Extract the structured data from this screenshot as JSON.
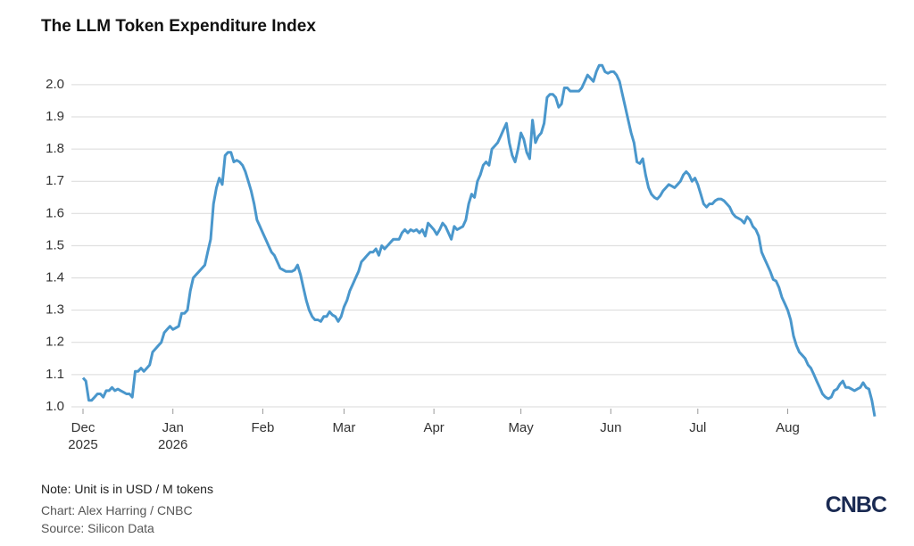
{
  "chart_data": {
    "type": "line",
    "title": "The LLM Token Expenditure Index",
    "note": "Note: Unit is in USD / M tokens",
    "credit": "Chart: Alex Harring / CNBC",
    "source": "Source: Silicon Data",
    "logo": "CNBC",
    "color": "#4a97cc",
    "grid": true,
    "xlim": [
      -4,
      277
    ],
    "ylim": [
      0.95,
      2.08
    ],
    "xticks": [
      {
        "value": 0,
        "label": "Dec 2025"
      },
      {
        "value": 31,
        "label": "Jan 2026"
      },
      {
        "value": 62,
        "label": "Feb"
      },
      {
        "value": 90,
        "label": "Mar"
      },
      {
        "value": 121,
        "label": "Apr"
      },
      {
        "value": 151,
        "label": "May"
      },
      {
        "value": 182,
        "label": "Jun"
      },
      {
        "value": 212,
        "label": "Jul"
      },
      {
        "value": 243,
        "label": "Aug"
      }
    ],
    "yticks": [
      {
        "value": 1,
        "label": "1.0"
      },
      1.1,
      1.2,
      1.3,
      1.4,
      1.5,
      1.6,
      1.7,
      1.8,
      1.9,
      {
        "value": 2,
        "label": "2.0"
      }
    ],
    "x": [
      0,
      1,
      2,
      3,
      4,
      5,
      6,
      7,
      8,
      9,
      10,
      11,
      12,
      13,
      14,
      15,
      16,
      17,
      18,
      19,
      20,
      21,
      22,
      23,
      24,
      25,
      26,
      27,
      28,
      29,
      30,
      31,
      32,
      33,
      34,
      35,
      36,
      37,
      38,
      39,
      40,
      41,
      42,
      43,
      44,
      45,
      46,
      47,
      48,
      49,
      50,
      51,
      52,
      53,
      54,
      55,
      56,
      57,
      58,
      59,
      60,
      61,
      62,
      63,
      64,
      65,
      66,
      67,
      68,
      69,
      70,
      71,
      72,
      73,
      74,
      75,
      76,
      77,
      78,
      79,
      80,
      81,
      82,
      83,
      84,
      85,
      86,
      87,
      88,
      89,
      90,
      91,
      92,
      93,
      94,
      95,
      96,
      97,
      98,
      99,
      100,
      101,
      102,
      103,
      104,
      105,
      106,
      107,
      108,
      109,
      110,
      111,
      112,
      113,
      114,
      115,
      116,
      117,
      118,
      119,
      120,
      121,
      122,
      123,
      124,
      125,
      126,
      127,
      128,
      129,
      130,
      131,
      132,
      133,
      134,
      135,
      136,
      137,
      138,
      139,
      140,
      141,
      142,
      143,
      144,
      145,
      146,
      147,
      148,
      149,
      150,
      151,
      152,
      153,
      154,
      155,
      156,
      157,
      158,
      159,
      160,
      161,
      162,
      163,
      164,
      165,
      166,
      167,
      168,
      169,
      170,
      171,
      172,
      173,
      174,
      175,
      176,
      177,
      178,
      179,
      180,
      181,
      182,
      183,
      184,
      185,
      186,
      187,
      188,
      189,
      190,
      191,
      192,
      193,
      194,
      195,
      196,
      197,
      198,
      199,
      200,
      201,
      202,
      203,
      204,
      205,
      206,
      207,
      208,
      209,
      210,
      211,
      212,
      213,
      214,
      215,
      216,
      217,
      218,
      219,
      220,
      221,
      222,
      223,
      224,
      225,
      226,
      227,
      228,
      229,
      230,
      231,
      232,
      233,
      234,
      235,
      236,
      237,
      238,
      239,
      240,
      241,
      242,
      243,
      244,
      245,
      246,
      247,
      248,
      249,
      250,
      251,
      252,
      253,
      254,
      255,
      256,
      257,
      258,
      259,
      260,
      261,
      262,
      263,
      264,
      265,
      266,
      267,
      268,
      269,
      270,
      271,
      272,
      273
    ],
    "values": [
      1.09,
      1.08,
      1.02,
      1.02,
      1.03,
      1.04,
      1.04,
      1.03,
      1.05,
      1.05,
      1.06,
      1.05,
      1.055,
      1.05,
      1.045,
      1.04,
      1.04,
      1.03,
      1.11,
      1.11,
      1.12,
      1.11,
      1.12,
      1.13,
      1.17,
      1.18,
      1.19,
      1.2,
      1.23,
      1.24,
      1.25,
      1.24,
      1.245,
      1.25,
      1.29,
      1.29,
      1.3,
      1.36,
      1.4,
      1.41,
      1.42,
      1.43,
      1.44,
      1.48,
      1.52,
      1.63,
      1.68,
      1.71,
      1.69,
      1.78,
      1.79,
      1.79,
      1.76,
      1.765,
      1.76,
      1.75,
      1.73,
      1.7,
      1.67,
      1.63,
      1.58,
      1.56,
      1.54,
      1.52,
      1.5,
      1.48,
      1.47,
      1.45,
      1.43,
      1.425,
      1.42,
      1.42,
      1.42,
      1.425,
      1.44,
      1.41,
      1.37,
      1.33,
      1.3,
      1.28,
      1.27,
      1.27,
      1.265,
      1.28,
      1.28,
      1.295,
      1.285,
      1.28,
      1.265,
      1.28,
      1.31,
      1.33,
      1.36,
      1.38,
      1.4,
      1.42,
      1.45,
      1.46,
      1.47,
      1.48,
      1.48,
      1.49,
      1.47,
      1.5,
      1.49,
      1.5,
      1.51,
      1.52,
      1.52,
      1.52,
      1.54,
      1.55,
      1.54,
      1.55,
      1.545,
      1.55,
      1.54,
      1.55,
      1.53,
      1.57,
      1.56,
      1.55,
      1.535,
      1.55,
      1.57,
      1.56,
      1.54,
      1.52,
      1.56,
      1.55,
      1.555,
      1.56,
      1.58,
      1.63,
      1.66,
      1.65,
      1.7,
      1.72,
      1.75,
      1.76,
      1.75,
      1.8,
      1.81,
      1.82,
      1.84,
      1.86,
      1.88,
      1.82,
      1.78,
      1.76,
      1.8,
      1.85,
      1.83,
      1.79,
      1.77,
      1.89,
      1.82,
      1.84,
      1.85,
      1.88,
      1.96,
      1.97,
      1.97,
      1.96,
      1.93,
      1.94,
      1.99,
      1.99,
      1.98,
      1.98,
      1.98,
      1.98,
      1.99,
      2.01,
      2.03,
      2.02,
      2.01,
      2.04,
      2.06,
      2.06,
      2.04,
      2.035,
      2.04,
      2.04,
      2.03,
      2.01,
      1.97,
      1.93,
      1.89,
      1.85,
      1.82,
      1.76,
      1.755,
      1.77,
      1.72,
      1.68,
      1.66,
      1.65,
      1.645,
      1.655,
      1.67,
      1.68,
      1.69,
      1.685,
      1.68,
      1.69,
      1.7,
      1.72,
      1.73,
      1.72,
      1.7,
      1.71,
      1.69,
      1.66,
      1.63,
      1.62,
      1.63,
      1.63,
      1.64,
      1.645,
      1.645,
      1.64,
      1.63,
      1.62,
      1.6,
      1.59,
      1.585,
      1.58,
      1.57,
      1.59,
      1.58,
      1.56,
      1.55,
      1.53,
      1.48,
      1.46,
      1.44,
      1.42,
      1.395,
      1.39,
      1.37,
      1.34,
      1.32,
      1.3,
      1.27,
      1.22,
      1.19,
      1.17,
      1.16,
      1.15,
      1.13,
      1.12,
      1.1,
      1.08,
      1.06,
      1.04,
      1.03,
      1.025,
      1.03,
      1.05,
      1.055,
      1.07,
      1.08,
      1.06,
      1.06,
      1.055,
      1.05,
      1.055,
      1.06,
      1.075,
      1.06,
      1.055,
      1.02,
      0.97
    ]
  }
}
